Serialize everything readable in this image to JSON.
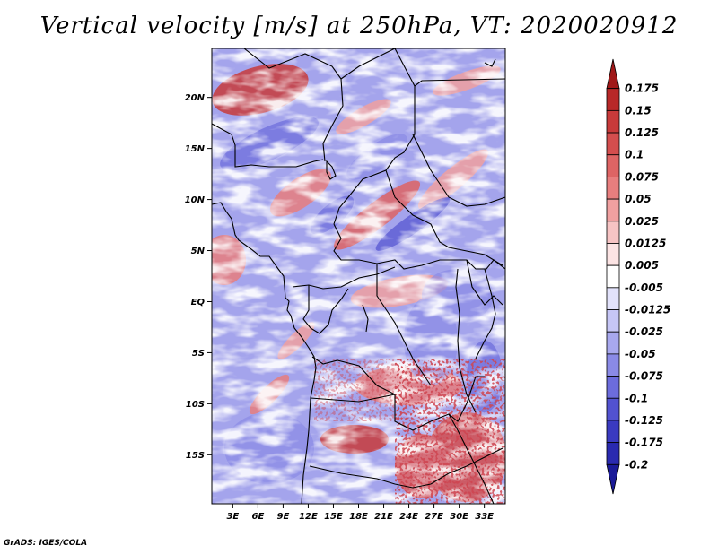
{
  "title": "Vertical velocity [m/s] at 250hPa, VT: 2020020912",
  "credit": "GrADS: IGES/COLA",
  "map": {
    "region": "Central Africa",
    "lat_labels": [
      {
        "label": "20N",
        "lat": 20
      },
      {
        "label": "15N",
        "lat": 15
      },
      {
        "label": "10N",
        "lat": 10
      },
      {
        "label": "5N",
        "lat": 5
      },
      {
        "label": "EQ",
        "lat": 0
      },
      {
        "label": "5S",
        "lat": -5
      },
      {
        "label": "10S",
        "lat": -10
      },
      {
        "label": "15S",
        "lat": -15
      }
    ],
    "lon_labels": [
      {
        "label": "3E",
        "lon": 3
      },
      {
        "label": "6E",
        "lon": 6
      },
      {
        "label": "9E",
        "lon": 9
      },
      {
        "label": "12E",
        "lon": 12
      },
      {
        "label": "15E",
        "lon": 15
      },
      {
        "label": "18E",
        "lon": 18
      },
      {
        "label": "21E",
        "lon": 21
      },
      {
        "label": "24E",
        "lon": 24
      },
      {
        "label": "27E",
        "lon": 27
      },
      {
        "label": "30E",
        "lon": 30
      },
      {
        "label": "33E",
        "lon": 33
      }
    ],
    "lon_range": [
      0.5,
      35.5
    ],
    "lat_range": [
      -19.8,
      24.8
    ]
  },
  "colorbar": {
    "labels": [
      "0.175",
      "0.15",
      "0.125",
      "0.1",
      "0.075",
      "0.05",
      "0.025",
      "0.0125",
      "0.005",
      "-0.005",
      "-0.0125",
      "-0.025",
      "-0.05",
      "-0.075",
      "-0.1",
      "-0.125",
      "-0.175",
      "-0.2"
    ],
    "colors": [
      "#a01818",
      "#b82828",
      "#c83a3a",
      "#d44e4e",
      "#de6464",
      "#e87e7e",
      "#f0a0a0",
      "#f7c4c4",
      "#fce4e4",
      "#ffffff",
      "#e2e2fb",
      "#c6c6f6",
      "#a8a8ee",
      "#8a8ae6",
      "#6c6cdc",
      "#5252d0",
      "#3a3ac0",
      "#2a2ab0",
      "#1a1a98"
    ]
  }
}
